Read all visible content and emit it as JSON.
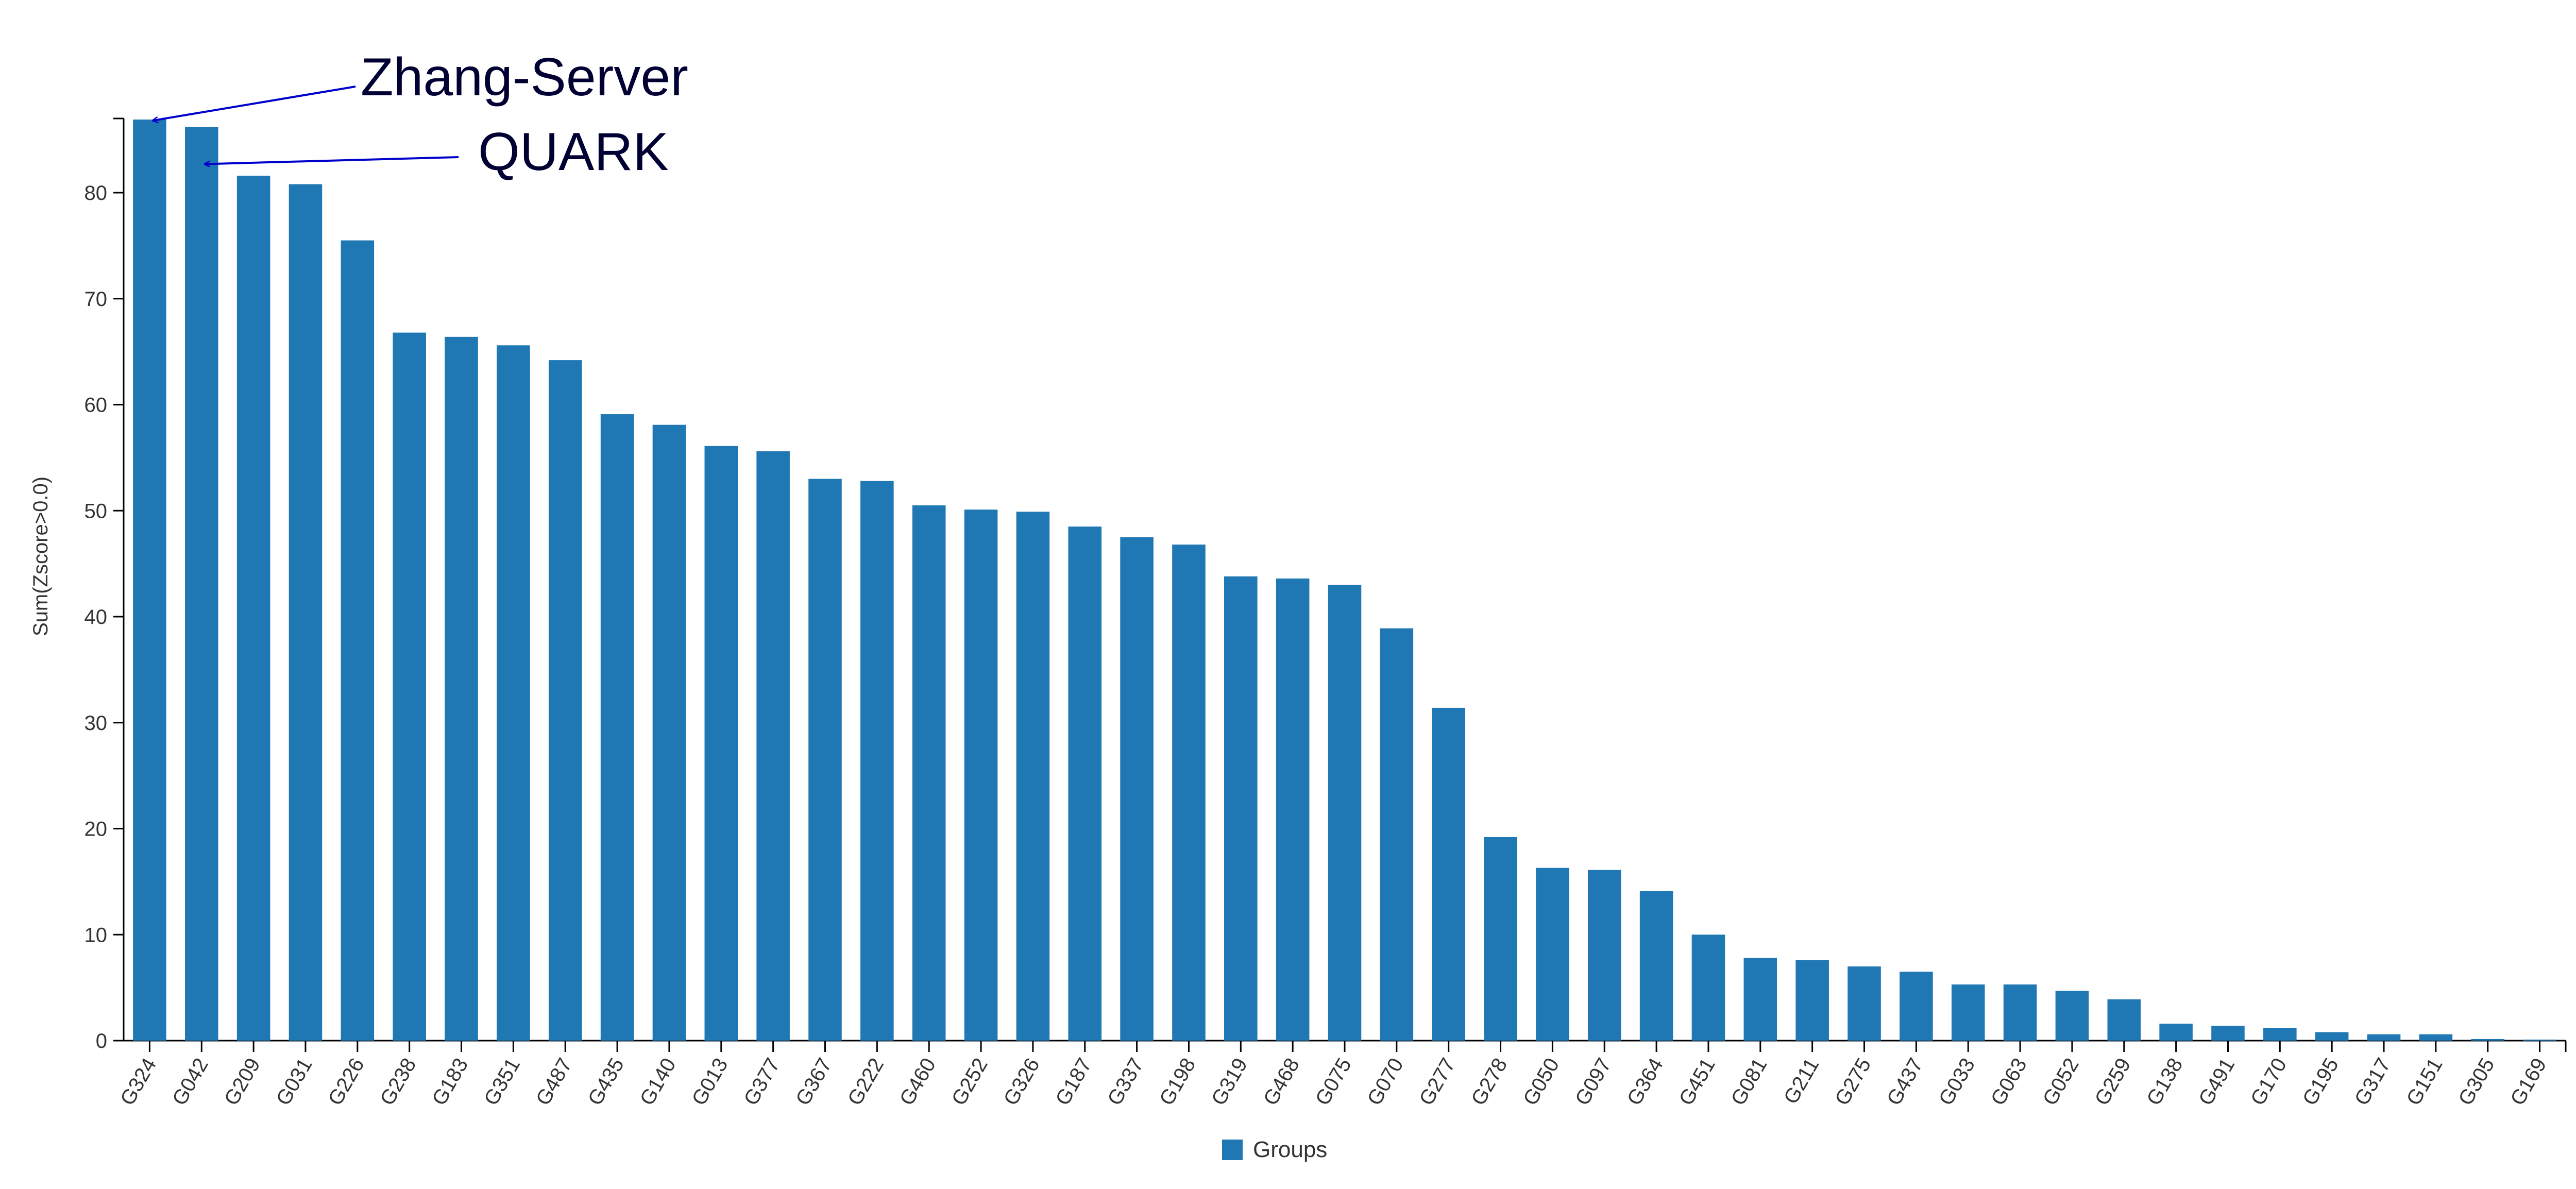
{
  "chart_data": {
    "type": "bar",
    "ylabel": "Sum(Zscore>0.0)",
    "xlabel": "",
    "ylim": [
      0,
      87
    ],
    "y_ticks": [
      0,
      10,
      20,
      30,
      40,
      50,
      60,
      70,
      80
    ],
    "grid": false,
    "legend_position": "bottom-center",
    "categories": [
      "G324",
      "G042",
      "G209",
      "G031",
      "G226",
      "G238",
      "G183",
      "G351",
      "G487",
      "G435",
      "G140",
      "G013",
      "G377",
      "G367",
      "G222",
      "G460",
      "G252",
      "G326",
      "G187",
      "G337",
      "G198",
      "G319",
      "G468",
      "G075",
      "G070",
      "G277",
      "G278",
      "G050",
      "G097",
      "G364",
      "G451",
      "G081",
      "G211",
      "G275",
      "G437",
      "G033",
      "G063",
      "G052",
      "G259",
      "G138",
      "G491",
      "G170",
      "G195",
      "G317",
      "G151",
      "G305",
      "G169"
    ],
    "series": [
      {
        "name": "Groups",
        "color": "#1f77b4",
        "values": [
          86.9,
          86.2,
          81.6,
          80.8,
          75.5,
          66.8,
          66.4,
          65.6,
          64.2,
          59.1,
          58.1,
          56.1,
          55.6,
          53.0,
          52.8,
          50.5,
          50.1,
          49.9,
          48.5,
          47.5,
          46.8,
          43.8,
          43.6,
          43.0,
          38.9,
          31.4,
          19.2,
          16.3,
          16.1,
          14.1,
          10.0,
          7.8,
          7.6,
          7.0,
          6.5,
          5.3,
          5.3,
          4.7,
          3.9,
          1.6,
          1.4,
          1.2,
          0.8,
          0.6,
          0.6,
          0.15,
          0.1
        ]
      }
    ],
    "annotations": [
      {
        "text": "Zhang-Server",
        "category": "G324",
        "color": "#0000cc"
      },
      {
        "text": "QUARK",
        "category": "G042",
        "color": "#0000cc"
      }
    ]
  }
}
